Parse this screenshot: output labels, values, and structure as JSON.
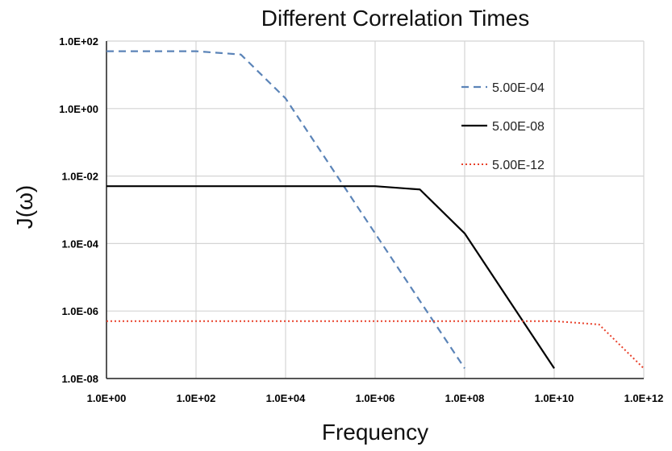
{
  "chart_data": {
    "type": "line",
    "title": "Different Correlation Times",
    "xlabel": "Frequency",
    "ylabel": "J(ω)",
    "x_scale": "log",
    "y_scale": "log",
    "xlim": [
      1,
      1000000000000
    ],
    "ylim": [
      1e-08,
      100
    ],
    "grid": true,
    "legend_position": "top-right",
    "x_tick_labels": [
      "1.0E+00",
      "1.0E+02",
      "1.0E+04",
      "1.0E+06",
      "1.0E+08",
      "1.0E+10",
      "1.0E+12"
    ],
    "x_tick_values": [
      1,
      100,
      10000,
      1000000,
      100000000,
      10000000000,
      1000000000000
    ],
    "y_tick_labels": [
      "1.0E+02",
      "1.0E+00",
      "1.0E-02",
      "1.0E-04",
      "1.0E-06",
      "1.0E-08"
    ],
    "y_tick_values": [
      100,
      1,
      0.01,
      0.0001,
      1e-06,
      1e-08
    ],
    "series": [
      {
        "name": "5.00E-04",
        "color": "#5b84b8",
        "line_style": "dashed",
        "x": [
          1,
          100,
          1000,
          10000,
          100000,
          1000000,
          10000000,
          100000000
        ],
        "y": [
          50,
          50,
          40,
          2,
          0.02,
          0.0002,
          2e-06,
          2e-08
        ]
      },
      {
        "name": "5.00E-08",
        "color": "#000000",
        "line_style": "solid",
        "x": [
          1,
          100,
          10000,
          1000000,
          10000000,
          100000000,
          1000000000,
          10000000000
        ],
        "y": [
          0.005,
          0.005,
          0.005,
          0.005,
          0.004,
          0.0002,
          2e-06,
          2e-08
        ]
      },
      {
        "name": "5.00E-12",
        "color": "#e8402a",
        "line_style": "dotted",
        "x": [
          1,
          100,
          10000,
          1000000,
          100000000,
          10000000000,
          100000000000,
          1000000000000
        ],
        "y": [
          5e-07,
          5e-07,
          5e-07,
          5e-07,
          5e-07,
          5e-07,
          4e-07,
          2e-08
        ]
      }
    ]
  }
}
